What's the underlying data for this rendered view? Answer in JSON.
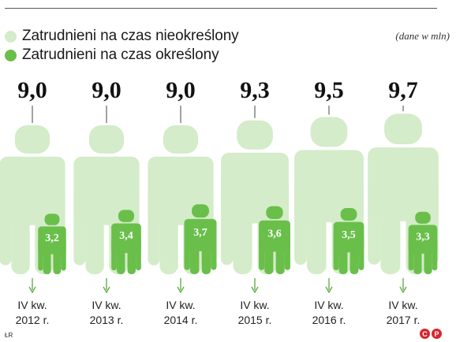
{
  "legend": {
    "items": [
      {
        "label": "Zatrudnieni na czas nieokreślony",
        "color": "#d4ecc9"
      },
      {
        "label": "Zatrudnieni na czas określony",
        "color": "#6abf4b"
      }
    ]
  },
  "unit_note": "(dane w mln)",
  "footer": {
    "source": "ŁR",
    "logo": [
      "C",
      "P"
    ]
  },
  "chart_data": {
    "type": "bar",
    "categories": [
      "IV kw.\n2012 r.",
      "IV kw.\n2013 r.",
      "IV kw.\n2014 r.",
      "IV kw.\n2015 r.",
      "IV kw.\n2016 r.",
      "IV kw.\n2017 r."
    ],
    "series": [
      {
        "name": "Zatrudnieni na czas nieokreślony",
        "values": [
          9.0,
          9.0,
          9.0,
          9.3,
          9.5,
          9.7
        ],
        "labels": [
          "9,0",
          "9,0",
          "9,0",
          "9,3",
          "9,5",
          "9,7"
        ],
        "color": "#d4ecc9"
      },
      {
        "name": "Zatrudnieni na czas określony",
        "values": [
          3.2,
          3.4,
          3.7,
          3.6,
          3.5,
          3.3
        ],
        "labels": [
          "3,2",
          "3,4",
          "3,7",
          "3,6",
          "3,5",
          "3,3"
        ],
        "color": "#6abf4b"
      }
    ],
    "unit": "mln"
  }
}
